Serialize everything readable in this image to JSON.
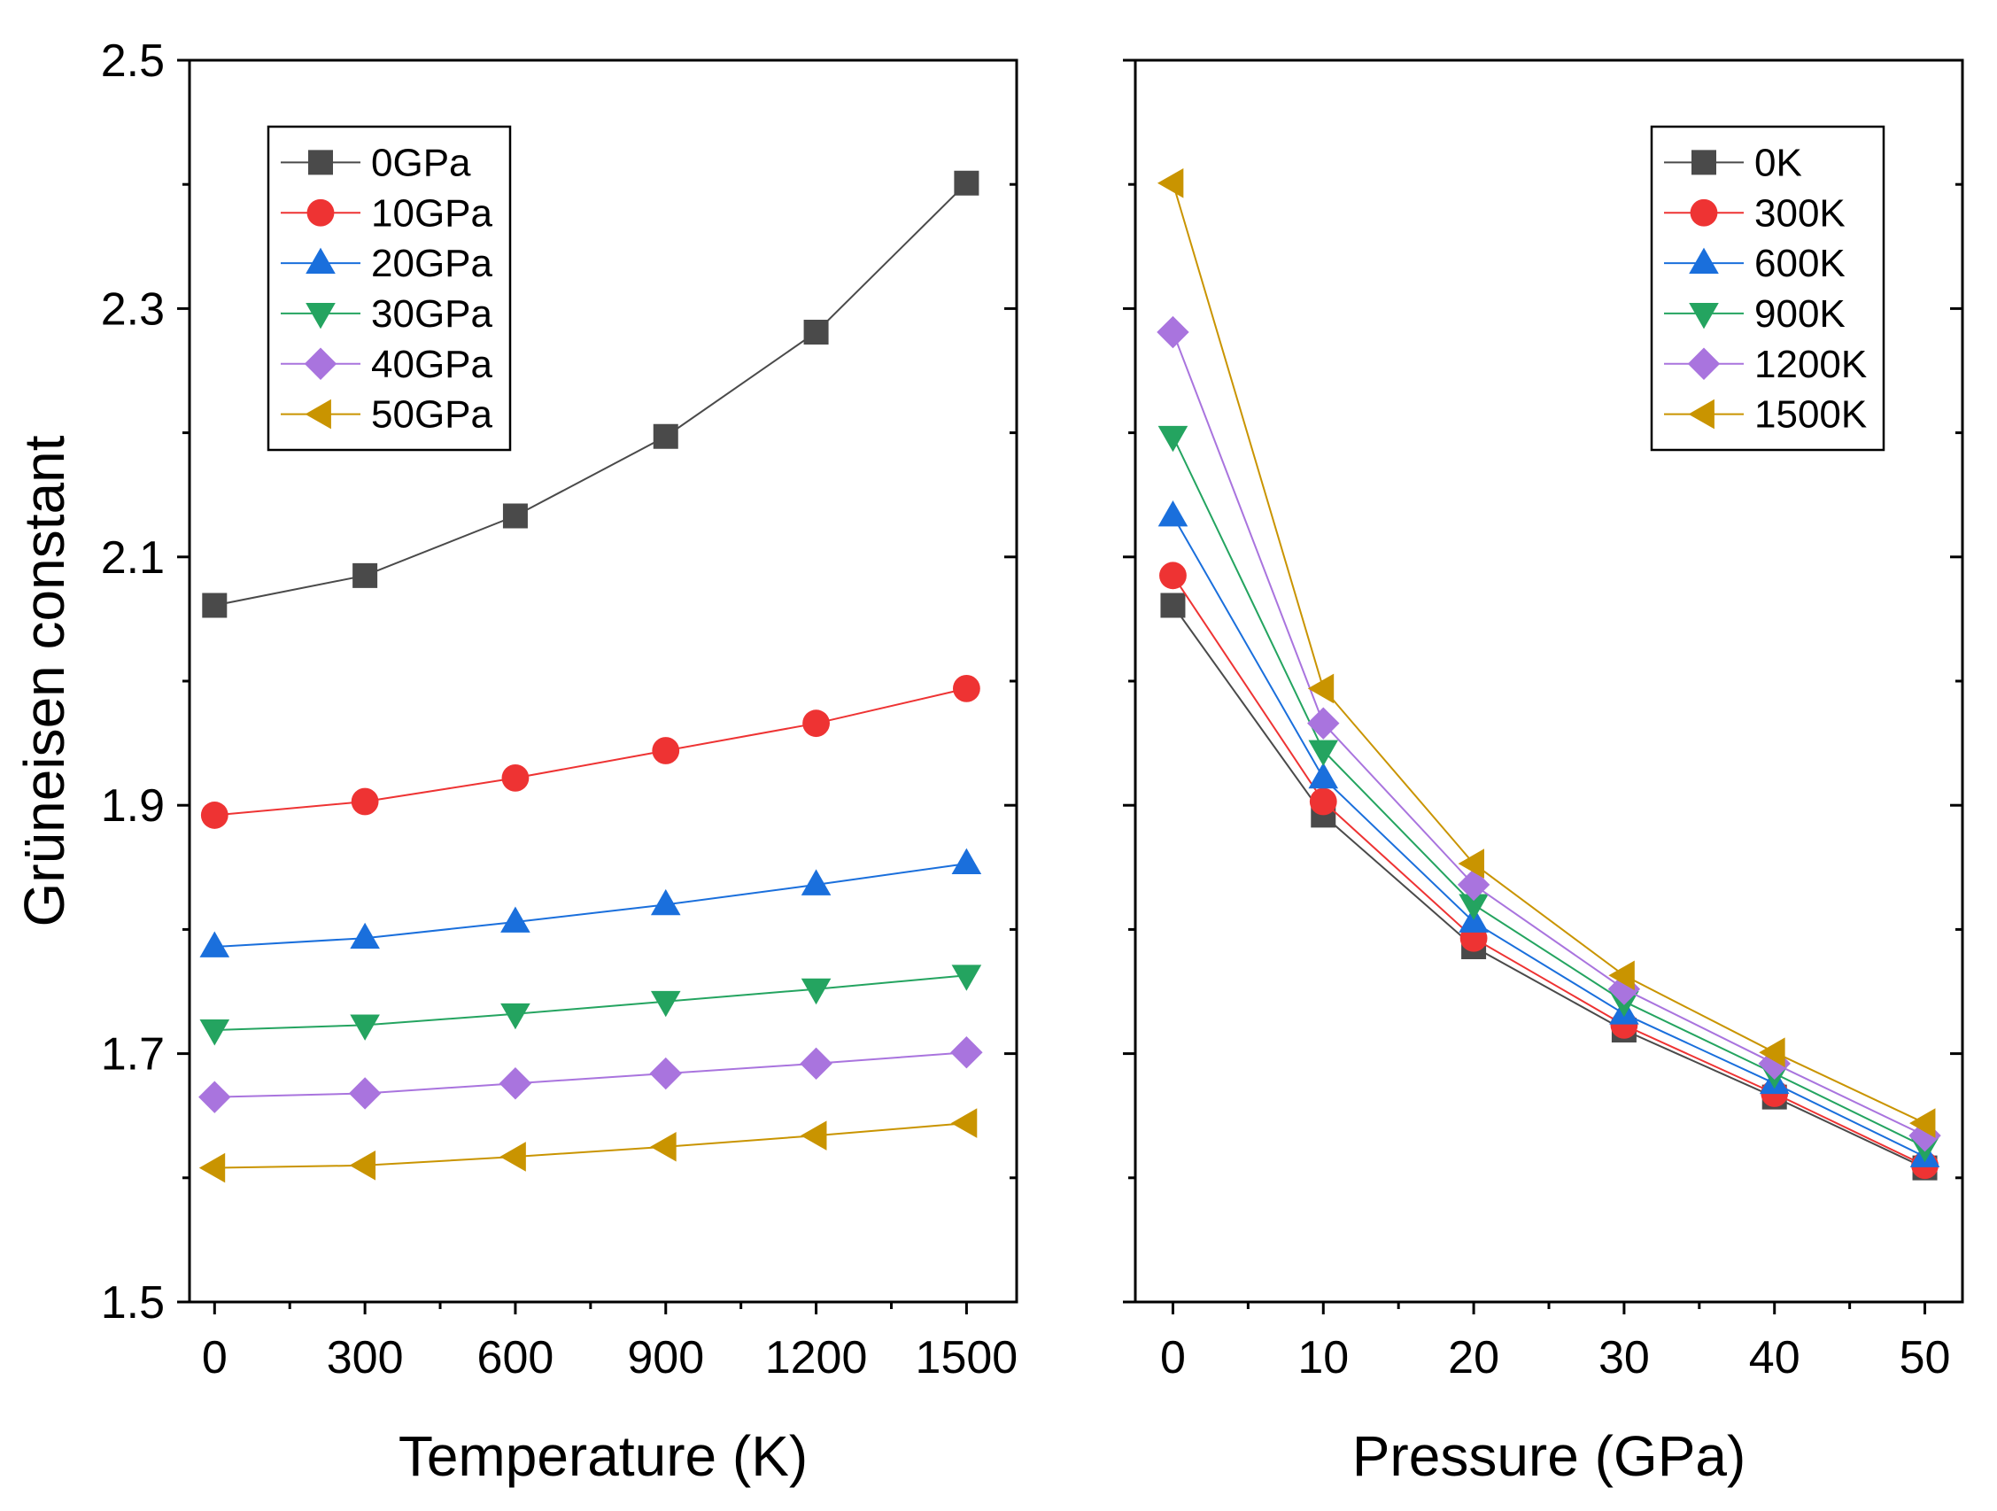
{
  "chart_data": [
    {
      "type": "line",
      "title": "",
      "xlabel": "Temperature (K)",
      "ylabel": "Grüneisen constant",
      "xlim": [
        -50,
        1600
      ],
      "ylim": [
        1.5,
        2.5
      ],
      "xticks": [
        0,
        300,
        600,
        900,
        1200,
        1500
      ],
      "xtick_labels": [
        "0",
        "300",
        "600",
        "900",
        "1200",
        "1500"
      ],
      "yticks": [
        1.5,
        1.7,
        1.9,
        2.1,
        2.3,
        2.5
      ],
      "ytick_labels": [
        "1.5",
        "1.7",
        "1.9",
        "2.1",
        "2.3",
        "2.5"
      ],
      "legend_position": "top-left",
      "x": [
        0,
        300,
        600,
        900,
        1200,
        1500
      ],
      "series": [
        {
          "name": "0GPa",
          "marker": "square",
          "color": "#4a4a4a",
          "values": [
            2.061,
            2.085,
            2.133,
            2.197,
            2.281,
            2.401
          ]
        },
        {
          "name": "10GPa",
          "marker": "circle",
          "color": "#ee3333",
          "values": [
            1.892,
            1.903,
            1.922,
            1.944,
            1.966,
            1.994
          ]
        },
        {
          "name": "20GPa",
          "marker": "triangle-up",
          "color": "#1a6fdc",
          "values": [
            1.786,
            1.793,
            1.806,
            1.82,
            1.836,
            1.853
          ]
        },
        {
          "name": "30GPa",
          "marker": "triangle-down",
          "color": "#24a460",
          "values": [
            1.719,
            1.723,
            1.732,
            1.742,
            1.752,
            1.763
          ]
        },
        {
          "name": "40GPa",
          "marker": "diamond",
          "color": "#a974de",
          "values": [
            1.665,
            1.668,
            1.676,
            1.684,
            1.692,
            1.701
          ]
        },
        {
          "name": "50GPa",
          "marker": "triangle-left",
          "color": "#c99400",
          "values": [
            1.608,
            1.61,
            1.617,
            1.625,
            1.634,
            1.644
          ]
        }
      ]
    },
    {
      "type": "line",
      "title": "",
      "xlabel": "Pressure (GPa)",
      "ylabel": "",
      "xlim": [
        -2.5,
        52.5
      ],
      "ylim": [
        1.5,
        2.5
      ],
      "xticks": [
        0,
        10,
        20,
        30,
        40,
        50
      ],
      "xtick_labels": [
        "0",
        "10",
        "20",
        "30",
        "40",
        "50"
      ],
      "yticks": [
        1.5,
        1.7,
        1.9,
        2.1,
        2.3,
        2.5
      ],
      "legend_position": "top-right",
      "x": [
        0,
        10,
        20,
        30,
        40,
        50
      ],
      "series": [
        {
          "name": "0K",
          "marker": "square",
          "color": "#4a4a4a",
          "values": [
            2.061,
            1.892,
            1.786,
            1.719,
            1.665,
            1.608
          ]
        },
        {
          "name": "300K",
          "marker": "circle",
          "color": "#ee3333",
          "values": [
            2.085,
            1.903,
            1.793,
            1.723,
            1.668,
            1.61
          ]
        },
        {
          "name": "600K",
          "marker": "triangle-up",
          "color": "#1a6fdc",
          "values": [
            2.133,
            1.922,
            1.806,
            1.732,
            1.676,
            1.617
          ]
        },
        {
          "name": "900K",
          "marker": "triangle-down",
          "color": "#24a460",
          "values": [
            2.197,
            1.944,
            1.82,
            1.742,
            1.684,
            1.625
          ]
        },
        {
          "name": "1200K",
          "marker": "diamond",
          "color": "#a974de",
          "values": [
            2.281,
            1.966,
            1.836,
            1.752,
            1.692,
            1.634
          ]
        },
        {
          "name": "1500K",
          "marker": "triangle-left",
          "color": "#c99400",
          "values": [
            2.401,
            1.994,
            1.853,
            1.763,
            1.701,
            1.644
          ]
        }
      ]
    }
  ]
}
